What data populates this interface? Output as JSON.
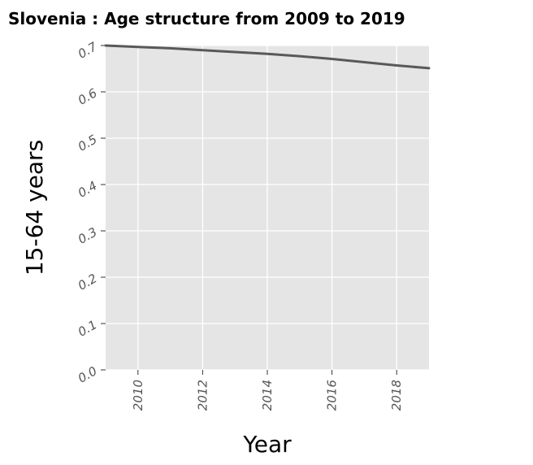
{
  "chart_data": {
    "type": "line",
    "title": "Slovenia : Age structure from 2009 to 2019",
    "xlabel": "Year",
    "ylabel": "15-64 years",
    "xlim": [
      2009,
      2019
    ],
    "ylim": [
      0,
      0.7
    ],
    "x_ticks": [
      2010,
      2012,
      2014,
      2016,
      2018
    ],
    "x_tick_labels": [
      "2010",
      "2012",
      "2014",
      "2016",
      "2018"
    ],
    "y_ticks": [
      0.0,
      0.1,
      0.2,
      0.3,
      0.4,
      0.5,
      0.6,
      0.7
    ],
    "y_tick_labels": [
      "0.0",
      "0.1",
      "0.2",
      "0.3",
      "0.4",
      "0.5",
      "0.6",
      "0.7"
    ],
    "grid": true,
    "series": [
      {
        "x": [
          2009,
          2010,
          2011,
          2012,
          2013,
          2014,
          2015,
          2016,
          2017,
          2018,
          2019
        ],
        "values": [
          0.7,
          0.697,
          0.694,
          0.69,
          0.686,
          0.682,
          0.677,
          0.671,
          0.664,
          0.657,
          0.651
        ]
      }
    ],
    "colors": {
      "plot_bg": "#e5e5e5",
      "grid": "#ffffff",
      "line": "#595959"
    }
  }
}
